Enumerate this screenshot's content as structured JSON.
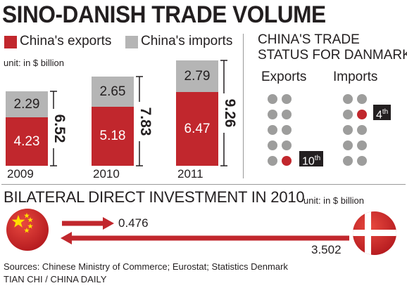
{
  "title": "SINO-DANISH TRADE VOLUME",
  "legend": {
    "exports_label": "China's exports",
    "imports_label": "China's imports",
    "exports_color": "#c1272d",
    "imports_color": "#b5b5b5"
  },
  "unit_label": "unit: in $ billion",
  "chart_data": [
    {
      "type": "bar",
      "stacked": true,
      "title": "SINO-DANISH TRADE VOLUME",
      "categories": [
        "2009",
        "2010",
        "2011"
      ],
      "series": [
        {
          "name": "China's exports",
          "values": [
            4.23,
            5.18,
            6.47
          ]
        },
        {
          "name": "China's imports",
          "values": [
            2.29,
            2.65,
            2.79
          ]
        }
      ],
      "totals": [
        "6.52",
        "7.83",
        "9.26"
      ],
      "unit": "unit: in $ billion"
    },
    {
      "type": "bar",
      "title": "BILATERAL DIRECT INVESTMENT IN 2010",
      "unit": "unit: in $ billion",
      "flows": [
        {
          "from": "China",
          "to": "Denmark",
          "value": 0.476
        },
        {
          "from": "Denmark",
          "to": "China",
          "value": 3.502
        }
      ]
    }
  ],
  "bars": [
    {
      "year": "2009",
      "exports": "4.23",
      "imports": "2.29",
      "total": "6.52"
    },
    {
      "year": "2010",
      "exports": "5.18",
      "imports": "2.65",
      "total": "7.83"
    },
    {
      "year": "2011",
      "exports": "6.47",
      "imports": "2.79",
      "total": "9.26"
    }
  ],
  "status": {
    "title_line1": "CHINA'S TRADE",
    "title_line2": "STATUS FOR DANMARK",
    "exports_head": "Exports",
    "imports_head": "Imports",
    "exports_rank_num": "10",
    "exports_rank_suffix": "th",
    "imports_rank_num": "4",
    "imports_rank_suffix": "th",
    "exports_rank": 10,
    "imports_rank": 4
  },
  "investment": {
    "title": "BILATERAL DIRECT INVESTMENT IN 2010",
    "unit_label": "unit: in $ billion",
    "china_to_denmark": "0.476",
    "denmark_to_china": "3.502"
  },
  "sources": "Sources: Chinese Ministry of Commerce; Eurostat; Statistics Denmark",
  "credit": "TIAN CHI / CHINA DAILY"
}
